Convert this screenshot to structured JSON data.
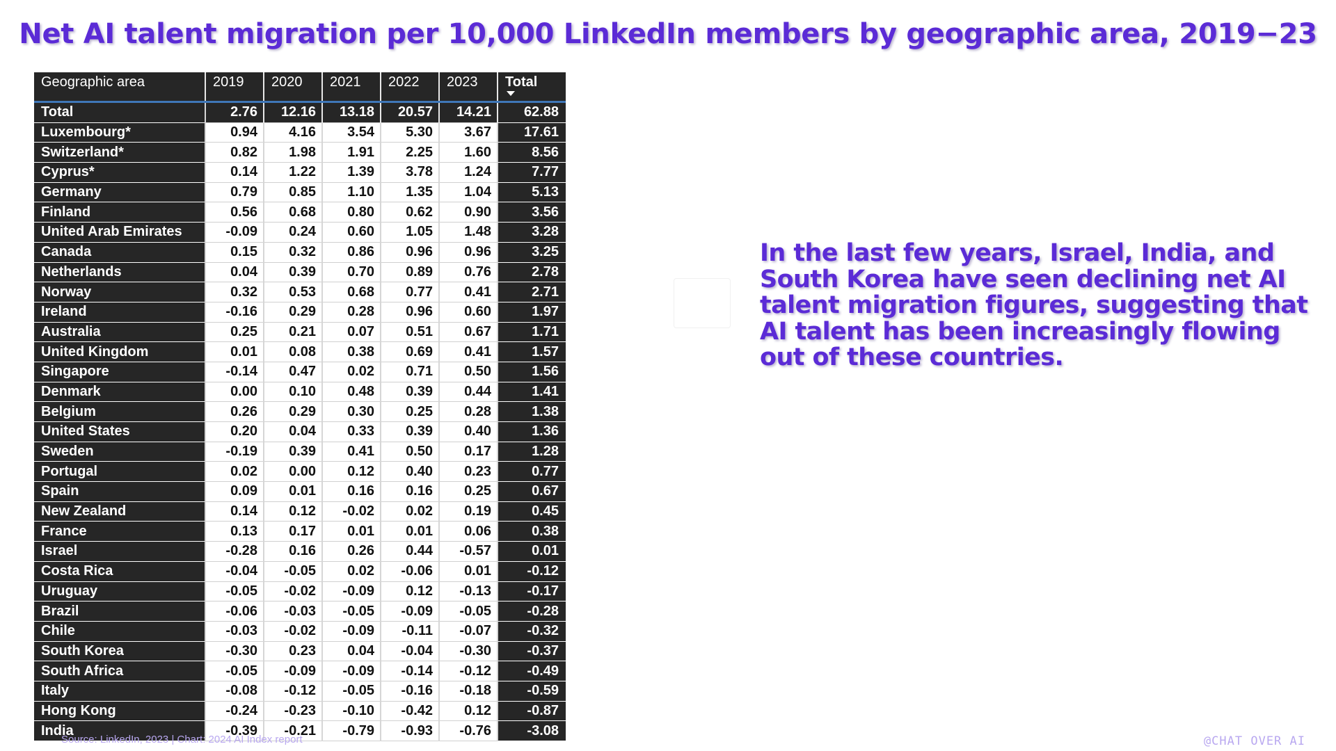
{
  "title": "Net AI talent migration per 10,000 LinkedIn members by geographic area, 2019−23",
  "annotation": "In the last few years, Israel, India, and South Korea have seen declining net AI talent migration figures, suggesting that AI talent has been increasingly flowing out of these countries.",
  "source": "Source: LinkedIn, 2023 | Chart: 2024 AI Index report",
  "brand": "@CHAT OVER AI",
  "colors": {
    "title": "#5b2bd6",
    "header_bg": "#262626",
    "header_rule": "#3f77b8"
  },
  "chart_data": {
    "type": "table",
    "title": "Net AI talent migration per 10,000 LinkedIn members by geographic area, 2019−23",
    "columns": [
      "Geographic area",
      "2019",
      "2020",
      "2021",
      "2022",
      "2023",
      "Total"
    ],
    "sorted_by": "Total",
    "rows": [
      [
        "Total",
        "2.76",
        "12.16",
        "13.18",
        "20.57",
        "14.21",
        "62.88"
      ],
      [
        "Luxembourg*",
        "0.94",
        "4.16",
        "3.54",
        "5.30",
        "3.67",
        "17.61"
      ],
      [
        "Switzerland*",
        "0.82",
        "1.98",
        "1.91",
        "2.25",
        "1.60",
        "8.56"
      ],
      [
        "Cyprus*",
        "0.14",
        "1.22",
        "1.39",
        "3.78",
        "1.24",
        "7.77"
      ],
      [
        "Germany",
        "0.79",
        "0.85",
        "1.10",
        "1.35",
        "1.04",
        "5.13"
      ],
      [
        "Finland",
        "0.56",
        "0.68",
        "0.80",
        "0.62",
        "0.90",
        "3.56"
      ],
      [
        "United Arab Emirates",
        "-0.09",
        "0.24",
        "0.60",
        "1.05",
        "1.48",
        "3.28"
      ],
      [
        "Canada",
        "0.15",
        "0.32",
        "0.86",
        "0.96",
        "0.96",
        "3.25"
      ],
      [
        "Netherlands",
        "0.04",
        "0.39",
        "0.70",
        "0.89",
        "0.76",
        "2.78"
      ],
      [
        "Norway",
        "0.32",
        "0.53",
        "0.68",
        "0.77",
        "0.41",
        "2.71"
      ],
      [
        "Ireland",
        "-0.16",
        "0.29",
        "0.28",
        "0.96",
        "0.60",
        "1.97"
      ],
      [
        "Australia",
        "0.25",
        "0.21",
        "0.07",
        "0.51",
        "0.67",
        "1.71"
      ],
      [
        "United Kingdom",
        "0.01",
        "0.08",
        "0.38",
        "0.69",
        "0.41",
        "1.57"
      ],
      [
        "Singapore",
        "-0.14",
        "0.47",
        "0.02",
        "0.71",
        "0.50",
        "1.56"
      ],
      [
        "Denmark",
        "0.00",
        "0.10",
        "0.48",
        "0.39",
        "0.44",
        "1.41"
      ],
      [
        "Belgium",
        "0.26",
        "0.29",
        "0.30",
        "0.25",
        "0.28",
        "1.38"
      ],
      [
        "United States",
        "0.20",
        "0.04",
        "0.33",
        "0.39",
        "0.40",
        "1.36"
      ],
      [
        "Sweden",
        "-0.19",
        "0.39",
        "0.41",
        "0.50",
        "0.17",
        "1.28"
      ],
      [
        "Portugal",
        "0.02",
        "0.00",
        "0.12",
        "0.40",
        "0.23",
        "0.77"
      ],
      [
        "Spain",
        "0.09",
        "0.01",
        "0.16",
        "0.16",
        "0.25",
        "0.67"
      ],
      [
        "New Zealand",
        "0.14",
        "0.12",
        "-0.02",
        "0.02",
        "0.19",
        "0.45"
      ],
      [
        "France",
        "0.13",
        "0.17",
        "0.01",
        "0.01",
        "0.06",
        "0.38"
      ],
      [
        "Israel",
        "-0.28",
        "0.16",
        "0.26",
        "0.44",
        "-0.57",
        "0.01"
      ],
      [
        "Costa Rica",
        "-0.04",
        "-0.05",
        "0.02",
        "-0.06",
        "0.01",
        "-0.12"
      ],
      [
        "Uruguay",
        "-0.05",
        "-0.02",
        "-0.09",
        "0.12",
        "-0.13",
        "-0.17"
      ],
      [
        "Brazil",
        "-0.06",
        "-0.03",
        "-0.05",
        "-0.09",
        "-0.05",
        "-0.28"
      ],
      [
        "Chile",
        "-0.03",
        "-0.02",
        "-0.09",
        "-0.11",
        "-0.07",
        "-0.32"
      ],
      [
        "South Korea",
        "-0.30",
        "0.23",
        "0.04",
        "-0.04",
        "-0.30",
        "-0.37"
      ],
      [
        "South Africa",
        "-0.05",
        "-0.09",
        "-0.09",
        "-0.14",
        "-0.12",
        "-0.49"
      ],
      [
        "Italy",
        "-0.08",
        "-0.12",
        "-0.05",
        "-0.16",
        "-0.18",
        "-0.59"
      ],
      [
        "Hong Kong",
        "-0.24",
        "-0.23",
        "-0.10",
        "-0.42",
        "0.12",
        "-0.87"
      ],
      [
        "India",
        "-0.39",
        "-0.21",
        "-0.79",
        "-0.93",
        "-0.76",
        "-3.08"
      ]
    ]
  }
}
